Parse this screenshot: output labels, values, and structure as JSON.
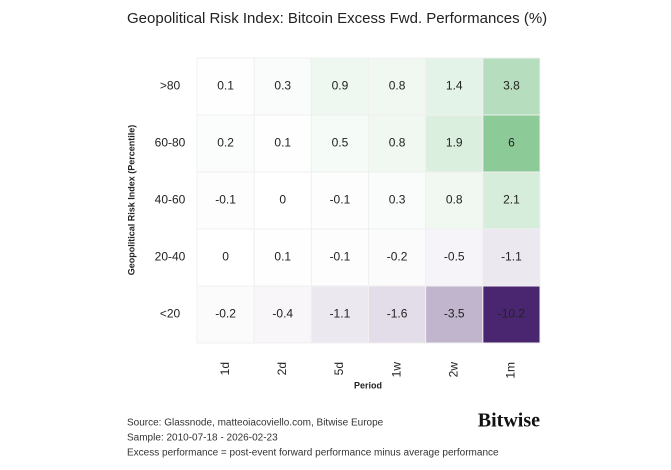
{
  "chart_data": {
    "type": "heatmap",
    "title": "Geopolitical Risk Index: Bitcoin Excess Fwd. Performances (%)",
    "x_label": "Period",
    "y_label": "Geopolitical Risk Index (Percentile)",
    "x_categories": [
      "1d",
      "2d",
      "5d",
      "1w",
      "2w",
      "1m"
    ],
    "y_categories": [
      ">80",
      "60-80",
      "40-60",
      "20-40",
      "<20"
    ],
    "values": [
      [
        0.1,
        0.3,
        0.9,
        0.8,
        1.4,
        3.8
      ],
      [
        0.2,
        0.1,
        0.5,
        0.8,
        1.9,
        6
      ],
      [
        -0.1,
        0,
        -0.1,
        0.3,
        0.8,
        2.1
      ],
      [
        0,
        0.1,
        -0.1,
        -0.2,
        -0.5,
        -1.1
      ],
      [
        -0.2,
        -0.4,
        -1.1,
        -1.6,
        -3.5,
        -10.2
      ]
    ],
    "color_positive": "#8ccb98",
    "color_negative": "#4a2670",
    "color_neutral": "#ffffff",
    "notes": [
      "Source: Glassnode, matteoiacoviello.com, Bitwise Europe",
      "Sample: 2010-07-18 - 2026-02-23",
      "Excess performance = post-event forward performance minus average performance"
    ],
    "logo": "Bitwise"
  }
}
